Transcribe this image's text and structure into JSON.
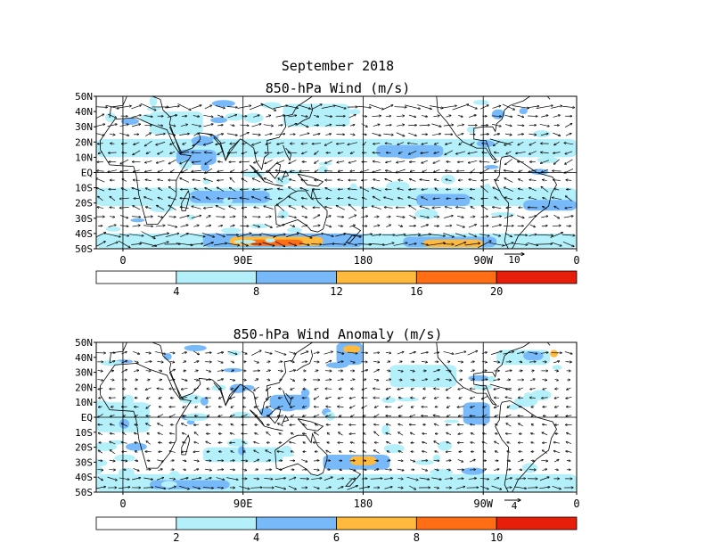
{
  "title": "September 2018",
  "colors": {
    "white": "#ffffff",
    "light_cyan": "#b4f0fa",
    "light_blue": "#78b9fa",
    "light_orange": "#ffb93c",
    "orange": "#ff6e14",
    "red": "#e61e0a",
    "coast": "#000000"
  },
  "panels": [
    {
      "id": "wind",
      "title": "850-hPa Wind (m/s)",
      "lat_labels": [
        "50N",
        "40N",
        "30N",
        "20N",
        "10N",
        "EQ",
        "10S",
        "20S",
        "30S",
        "40S",
        "50S"
      ],
      "lon_labels": [
        "0",
        "90E",
        "180",
        "90W",
        "0"
      ],
      "reference_vector": "10",
      "colorbar_labels": [
        "4",
        "8",
        "12",
        "16",
        "20"
      ],
      "colorbar_colors": [
        "white",
        "light_cyan",
        "light_blue",
        "light_orange",
        "orange",
        "red"
      ]
    },
    {
      "id": "anomaly",
      "title": "850-hPa Wind Anomaly (m/s)",
      "lat_labels": [
        "50N",
        "40N",
        "30N",
        "20N",
        "10N",
        "EQ",
        "10S",
        "20S",
        "30S",
        "40S",
        "50S"
      ],
      "lon_labels": [
        "0",
        "90E",
        "180",
        "90W",
        "0"
      ],
      "reference_vector": "4",
      "colorbar_labels": [
        "2",
        "4",
        "6",
        "8",
        "10"
      ],
      "colorbar_colors": [
        "white",
        "light_cyan",
        "light_blue",
        "light_orange",
        "orange",
        "red"
      ]
    }
  ]
}
